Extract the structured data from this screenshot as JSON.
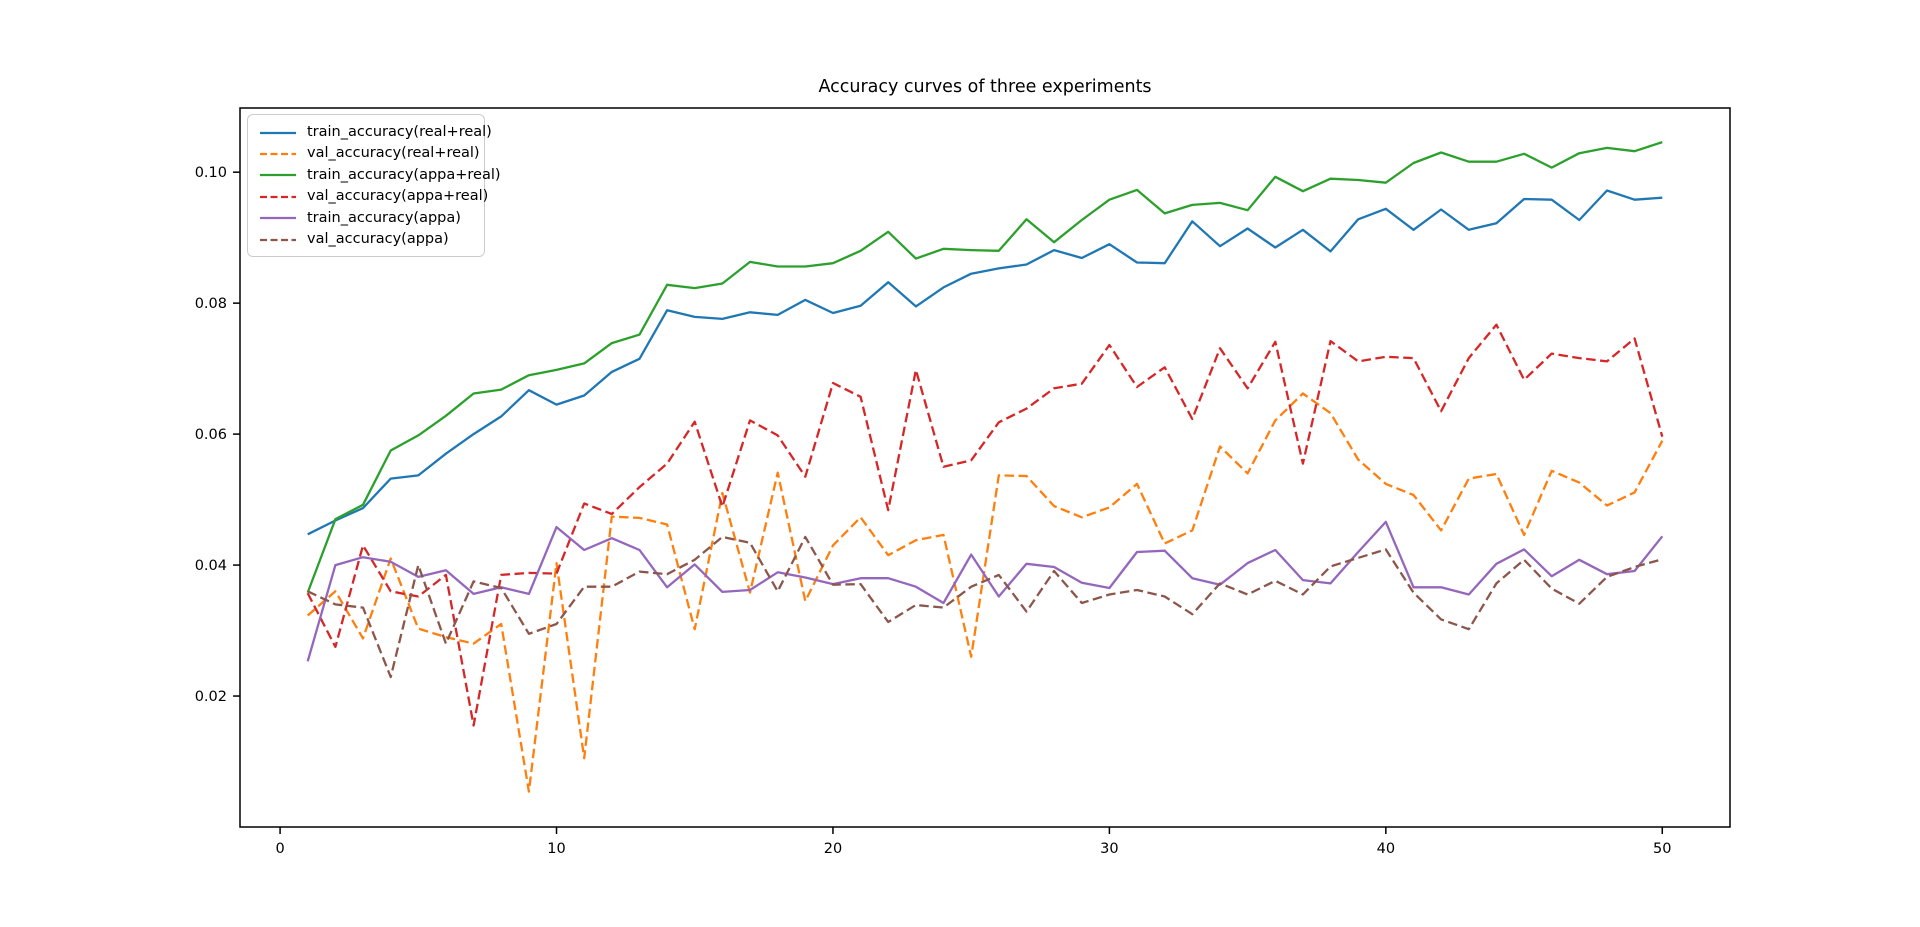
{
  "title": "Accuracy curves of three experiments",
  "chart_data": {
    "type": "line",
    "title": "Accuracy curves of three experiments",
    "xlabel": "",
    "ylabel": "",
    "grid": false,
    "legend_position": "upper left",
    "xlim": [
      -1.45,
      52.45
    ],
    "ylim": [
      0.0,
      0.1098
    ],
    "xticks": [
      0,
      10,
      20,
      30,
      40,
      50
    ],
    "yticks": [
      0.02,
      0.04,
      0.06,
      0.08,
      0.1
    ],
    "x": [
      1,
      2,
      3,
      4,
      5,
      6,
      7,
      8,
      9,
      10,
      11,
      12,
      13,
      14,
      15,
      16,
      17,
      18,
      19,
      20,
      21,
      22,
      23,
      24,
      25,
      26,
      27,
      28,
      29,
      30,
      31,
      32,
      33,
      34,
      35,
      36,
      37,
      38,
      39,
      40,
      41,
      42,
      43,
      44,
      45,
      46,
      47,
      48,
      49,
      50
    ],
    "series": [
      {
        "name": "train_accuracy(real+real)",
        "color": "#1f77b4",
        "style": "solid",
        "values": [
          0.0447,
          0.0468,
          0.0487,
          0.0532,
          0.0537,
          0.057,
          0.06,
          0.0627,
          0.0667,
          0.0645,
          0.0659,
          0.0695,
          0.0715,
          0.0789,
          0.0779,
          0.0776,
          0.0786,
          0.0782,
          0.0805,
          0.0785,
          0.0796,
          0.0832,
          0.0795,
          0.0824,
          0.0845,
          0.0853,
          0.0859,
          0.0881,
          0.0869,
          0.089,
          0.0862,
          0.0861,
          0.0925,
          0.0887,
          0.0914,
          0.0885,
          0.0912,
          0.0879,
          0.0928,
          0.0944,
          0.0912,
          0.0943,
          0.0912,
          0.0922,
          0.0959,
          0.0958,
          0.0927,
          0.0972,
          0.0958,
          0.0961
        ]
      },
      {
        "name": "val_accuracy(real+real)",
        "color": "#ff7f0e",
        "style": "dashed",
        "values": [
          0.0323,
          0.036,
          0.0288,
          0.041,
          0.0303,
          0.029,
          0.028,
          0.031,
          0.0054,
          0.0403,
          0.0105,
          0.0474,
          0.0472,
          0.0462,
          0.0302,
          0.051,
          0.0358,
          0.0541,
          0.0345,
          0.043,
          0.0473,
          0.0415,
          0.0438,
          0.0446,
          0.026,
          0.0537,
          0.0536,
          0.049,
          0.0473,
          0.0488,
          0.0524,
          0.0433,
          0.0453,
          0.0581,
          0.054,
          0.0621,
          0.0662,
          0.0632,
          0.0561,
          0.0524,
          0.0507,
          0.0453,
          0.0532,
          0.0539,
          0.0446,
          0.0544,
          0.0526,
          0.0491,
          0.0511,
          0.059
        ]
      },
      {
        "name": "train_accuracy(appa+real)",
        "color": "#2ca02c",
        "style": "solid",
        "values": [
          0.0358,
          0.047,
          0.0492,
          0.0575,
          0.0598,
          0.0628,
          0.0662,
          0.0668,
          0.069,
          0.0698,
          0.0708,
          0.0739,
          0.0752,
          0.0828,
          0.0823,
          0.083,
          0.0863,
          0.0856,
          0.0856,
          0.0861,
          0.088,
          0.0909,
          0.0868,
          0.0883,
          0.0881,
          0.088,
          0.0928,
          0.0893,
          0.0927,
          0.0958,
          0.0973,
          0.0937,
          0.095,
          0.0953,
          0.0942,
          0.0993,
          0.0971,
          0.099,
          0.0988,
          0.0984,
          0.1014,
          0.103,
          0.1016,
          0.1016,
          0.1028,
          0.1007,
          0.1029,
          0.1037,
          0.1032,
          0.1046
        ]
      },
      {
        "name": "val_accuracy(appa+real)",
        "color": "#d62728",
        "style": "dashed",
        "values": [
          0.0357,
          0.0275,
          0.043,
          0.036,
          0.0352,
          0.0385,
          0.0155,
          0.0385,
          0.0388,
          0.0387,
          0.0494,
          0.0478,
          0.0519,
          0.0555,
          0.0619,
          0.0489,
          0.0621,
          0.0598,
          0.0535,
          0.0678,
          0.0657,
          0.0484,
          0.0698,
          0.055,
          0.056,
          0.0618,
          0.0639,
          0.067,
          0.0677,
          0.0736,
          0.0672,
          0.0702,
          0.0623,
          0.0731,
          0.067,
          0.0741,
          0.0555,
          0.0742,
          0.0711,
          0.0718,
          0.0716,
          0.0635,
          0.0716,
          0.0767,
          0.0683,
          0.0723,
          0.0716,
          0.0711,
          0.0746,
          0.0596
        ]
      },
      {
        "name": "train_accuracy(appa)",
        "color": "#9467bd",
        "style": "solid",
        "values": [
          0.0253,
          0.04,
          0.0412,
          0.0405,
          0.0382,
          0.0392,
          0.0356,
          0.0366,
          0.0356,
          0.0458,
          0.0423,
          0.0441,
          0.0423,
          0.0366,
          0.0401,
          0.0359,
          0.0362,
          0.0389,
          0.0381,
          0.0371,
          0.038,
          0.038,
          0.0367,
          0.0342,
          0.0416,
          0.0352,
          0.0402,
          0.0397,
          0.0373,
          0.0365,
          0.042,
          0.0422,
          0.038,
          0.037,
          0.0403,
          0.0423,
          0.0377,
          0.0372,
          0.042,
          0.0466,
          0.0366,
          0.0366,
          0.0355,
          0.0402,
          0.0424,
          0.0383,
          0.0408,
          0.0386,
          0.0391,
          0.0444
        ]
      },
      {
        "name": "val_accuracy(appa)",
        "color": "#8c564b",
        "style": "dashed",
        "values": [
          0.036,
          0.034,
          0.0335,
          0.0229,
          0.04,
          0.028,
          0.0375,
          0.0365,
          0.0295,
          0.031,
          0.0367,
          0.0367,
          0.039,
          0.0386,
          0.0408,
          0.0443,
          0.0434,
          0.036,
          0.0443,
          0.037,
          0.0371,
          0.0313,
          0.0339,
          0.0335,
          0.0367,
          0.0385,
          0.0329,
          0.0391,
          0.0342,
          0.0355,
          0.0362,
          0.0352,
          0.0325,
          0.0372,
          0.0355,
          0.0376,
          0.0355,
          0.0398,
          0.0411,
          0.0424,
          0.0358,
          0.0317,
          0.0302,
          0.0372,
          0.0408,
          0.0364,
          0.0341,
          0.0382,
          0.0397,
          0.0409
        ]
      }
    ]
  }
}
